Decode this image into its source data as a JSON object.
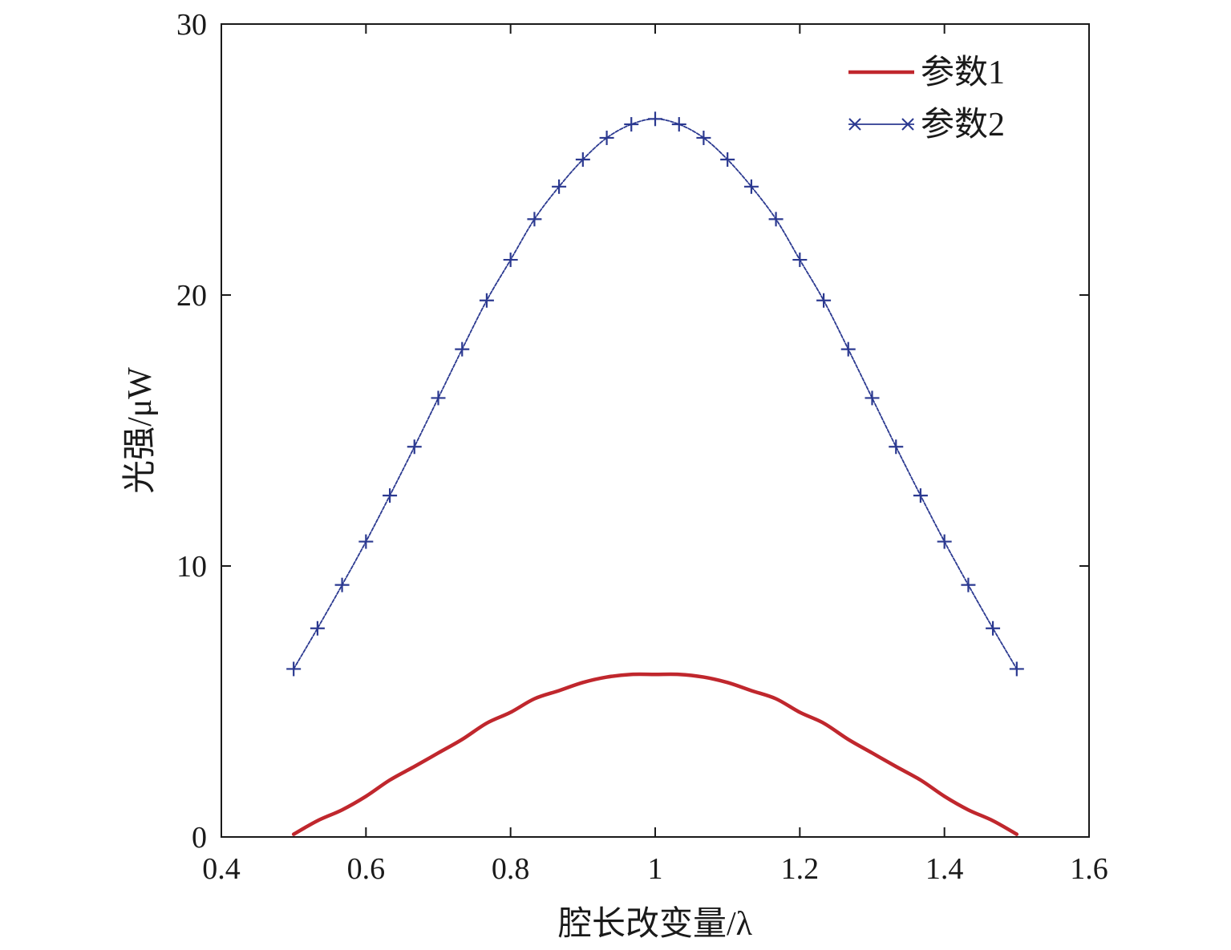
{
  "chart_data": {
    "type": "line",
    "title": "",
    "xlabel": "腔长改变量/λ",
    "ylabel": "光强/μW",
    "xlim": [
      0.4,
      1.6
    ],
    "ylim": [
      0,
      30
    ],
    "xticks": [
      {
        "value": 0.4,
        "label": "0.4"
      },
      {
        "value": 0.6,
        "label": "0.6"
      },
      {
        "value": 0.8,
        "label": "0.8"
      },
      {
        "value": 1.0,
        "label": "1"
      },
      {
        "value": 1.2,
        "label": "1.2"
      },
      {
        "value": 1.4,
        "label": "1.4"
      },
      {
        "value": 1.6,
        "label": "1.6"
      }
    ],
    "yticks": [
      {
        "value": 0,
        "label": "0"
      },
      {
        "value": 10,
        "label": "10"
      },
      {
        "value": 20,
        "label": "20"
      },
      {
        "value": 30,
        "label": "30"
      }
    ],
    "grid": false,
    "legend_position": "top-right",
    "series": [
      {
        "name": "参数1",
        "color": "#c0272d",
        "marker": "none",
        "x": [
          0.5,
          0.533,
          0.567,
          0.6,
          0.633,
          0.667,
          0.7,
          0.733,
          0.767,
          0.8,
          0.833,
          0.867,
          0.9,
          0.933,
          0.967,
          1.0,
          1.033,
          1.067,
          1.1,
          1.133,
          1.167,
          1.2,
          1.233,
          1.267,
          1.3,
          1.333,
          1.367,
          1.4,
          1.433,
          1.467,
          1.5
        ],
        "y": [
          0.1,
          0.6,
          1.0,
          1.5,
          2.1,
          2.6,
          3.1,
          3.6,
          4.2,
          4.6,
          5.1,
          5.4,
          5.7,
          5.9,
          6.0,
          6.0,
          6.0,
          5.9,
          5.7,
          5.4,
          5.1,
          4.6,
          4.2,
          3.6,
          3.1,
          2.6,
          2.1,
          1.5,
          1.0,
          0.6,
          0.1
        ]
      },
      {
        "name": "参数2",
        "color": "#2b3990",
        "marker": "plus",
        "x": [
          0.5,
          0.533,
          0.567,
          0.6,
          0.633,
          0.667,
          0.7,
          0.733,
          0.767,
          0.8,
          0.833,
          0.867,
          0.9,
          0.933,
          0.967,
          1.0,
          1.033,
          1.067,
          1.1,
          1.133,
          1.167,
          1.2,
          1.233,
          1.267,
          1.3,
          1.333,
          1.367,
          1.4,
          1.433,
          1.467,
          1.5
        ],
        "y": [
          6.2,
          7.7,
          9.3,
          10.9,
          12.6,
          14.4,
          16.2,
          18.0,
          19.8,
          21.3,
          22.8,
          24.0,
          25.0,
          25.8,
          26.3,
          26.5,
          26.3,
          25.8,
          25.0,
          24.0,
          22.8,
          21.3,
          19.8,
          18.0,
          16.2,
          14.4,
          12.6,
          10.9,
          9.3,
          7.7,
          6.2
        ]
      }
    ]
  }
}
